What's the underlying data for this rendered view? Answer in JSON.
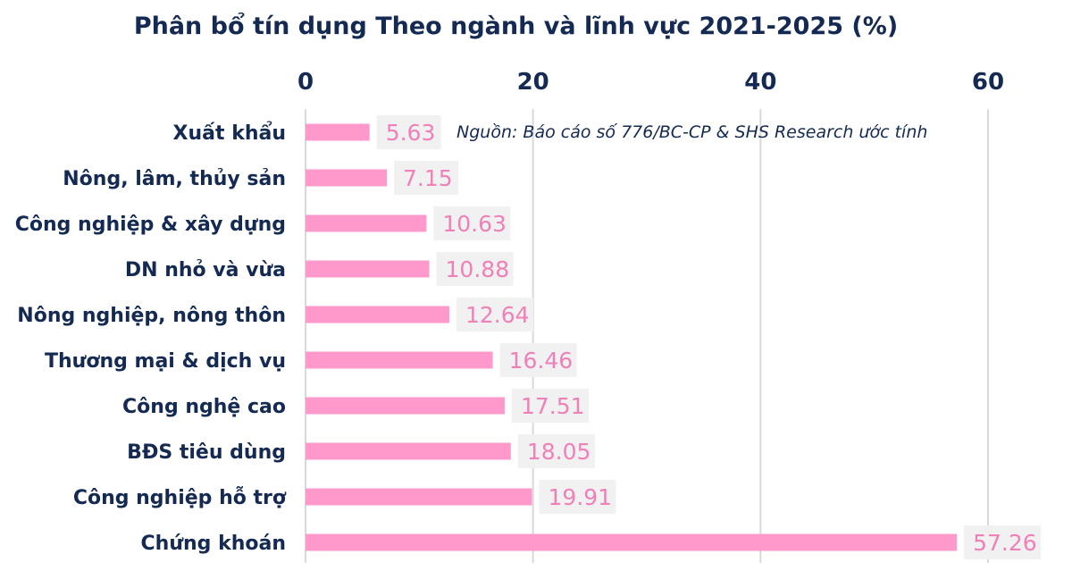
{
  "chart_data": {
    "type": "bar",
    "orientation": "horizontal",
    "title": "Phân bổ tín dụng Theo ngành và lĩnh vực 2021-2025 (%)",
    "annotation": "Nguồn: Báo cáo số 776/BC-CP & SHS Research ước tính",
    "categories": [
      "Xuất khẩu",
      "Nông, lâm, thủy sản",
      "Công nghiệp & xây dựng",
      "DN nhỏ và vừa",
      "Nông nghiệp, nông thôn",
      "Thương mại & dịch vụ",
      "Công nghệ cao",
      "BĐS tiêu dùng",
      "Công nghiệp hỗ trợ",
      "Chứng khoán"
    ],
    "values": [
      5.63,
      7.15,
      10.63,
      10.88,
      12.64,
      16.46,
      17.51,
      18.05,
      19.91,
      57.26
    ],
    "data_labels": [
      "5.63",
      "7.15",
      "10.63",
      "10.88",
      "12.64",
      "16.46",
      "17.51",
      "18.05",
      "19.91",
      "57.26"
    ],
    "xlim": [
      0,
      60
    ],
    "x_ticks": [
      0,
      20,
      40,
      60
    ],
    "x_tick_labels": [
      "0",
      "20",
      "40",
      "60"
    ],
    "x_axis_position": "top",
    "grid": "vertical",
    "legend": "none",
    "colors": {
      "bar": "#ff99cc",
      "label_text": "#f080b8",
      "label_bg": "#f1f1f1",
      "text": "#142a52",
      "grid": "#d9d9d9"
    }
  }
}
